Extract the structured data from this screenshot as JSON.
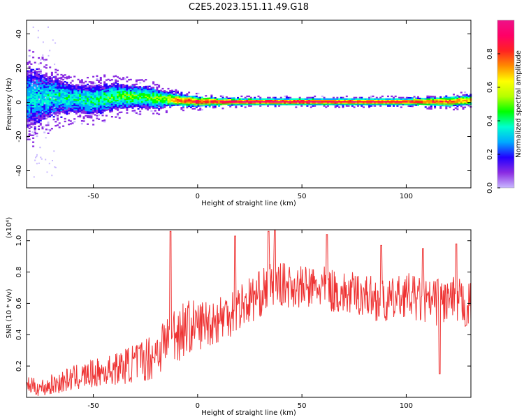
{
  "figure_title": "C2E5.2023.151.11.49.G18",
  "colorbar": {
    "label": "Normalized spectral amplitude",
    "range": [
      0,
      1
    ],
    "ticks": [
      0.0,
      0.2,
      0.4,
      0.6,
      0.8
    ],
    "tick_labels": [
      "0.0",
      "0.2",
      "0.4",
      "0.6",
      "0.8"
    ],
    "colormap": [
      "#c9b9ff",
      "#8a2be2",
      "#2200ff",
      "#00aaff",
      "#00ffd0",
      "#00ff00",
      "#b4ff00",
      "#ffff00",
      "#ff8c00",
      "#ff2222",
      "#ff0066",
      "#ee1188"
    ]
  },
  "chart_data": [
    {
      "type": "heatmap",
      "title": "",
      "xlabel": "Height of straight line (km)",
      "ylabel": "Frequency (Hz)",
      "xlim": [
        -82,
        131
      ],
      "ylim": [
        -50,
        48
      ],
      "x_ticks": [
        -50,
        0,
        50,
        100
      ],
      "x_tick_labels": [
        "-50",
        "0",
        "50",
        "100"
      ],
      "y_ticks": [
        -40,
        -20,
        0,
        20,
        40
      ],
      "y_tick_labels": [
        "-40",
        "-20",
        "0",
        "20",
        "40"
      ],
      "grid": false,
      "band_center_hz": [
        [
          -80,
          2
        ],
        [
          -70,
          3
        ],
        [
          -60,
          2
        ],
        [
          -50,
          1
        ],
        [
          -40,
          3
        ],
        [
          -30,
          3
        ],
        [
          -20,
          2
        ],
        [
          -10,
          1
        ],
        [
          0,
          0
        ],
        [
          10,
          0
        ],
        [
          20,
          0
        ],
        [
          40,
          0
        ],
        [
          60,
          0
        ],
        [
          80,
          0
        ],
        [
          100,
          0
        ],
        [
          120,
          0
        ],
        [
          130,
          1
        ]
      ],
      "band_halfwidth_hz": [
        [
          -80,
          18
        ],
        [
          -70,
          12
        ],
        [
          -60,
          9
        ],
        [
          -50,
          9
        ],
        [
          -40,
          8
        ],
        [
          -30,
          7
        ],
        [
          -20,
          6
        ],
        [
          -12,
          4
        ],
        [
          0,
          3
        ],
        [
          20,
          2
        ],
        [
          60,
          2
        ],
        [
          100,
          2
        ],
        [
          120,
          3
        ],
        [
          130,
          3
        ]
      ],
      "normalized_amplitude": [
        [
          -80,
          0.3
        ],
        [
          -70,
          0.35
        ],
        [
          -60,
          0.35
        ],
        [
          -50,
          0.4
        ],
        [
          -40,
          0.45
        ],
        [
          -30,
          0.45
        ],
        [
          -20,
          0.5
        ],
        [
          -15,
          0.55
        ],
        [
          -10,
          0.75
        ],
        [
          -5,
          0.8
        ],
        [
          0,
          0.85
        ],
        [
          10,
          0.85
        ],
        [
          20,
          0.95
        ],
        [
          40,
          0.95
        ],
        [
          60,
          0.9
        ],
        [
          80,
          0.9
        ],
        [
          100,
          0.85
        ],
        [
          120,
          0.8
        ],
        [
          130,
          0.7
        ]
      ]
    },
    {
      "type": "line",
      "title": "",
      "xlabel": "Height of straight line (km)",
      "ylabel": "SNR (10 * v/v)",
      "y_scale_label": "(x10⁴)",
      "xlim": [
        -82,
        131
      ],
      "ylim": [
        0,
        1.07
      ],
      "x_ticks": [
        -50,
        0,
        50,
        100
      ],
      "x_tick_labels": [
        "-50",
        "0",
        "50",
        "100"
      ],
      "y_ticks": [
        0.2,
        0.4,
        0.6,
        0.8,
        1.0
      ],
      "y_tick_labels": [
        "0.2",
        "0.4",
        "0.6",
        "0.8",
        "1.0"
      ],
      "grid": false,
      "series": [
        {
          "color": "#ee3333",
          "mean_envelope": [
            [
              -82,
              0.08
            ],
            [
              -75,
              0.06
            ],
            [
              -70,
              0.08
            ],
            [
              -60,
              0.12
            ],
            [
              -50,
              0.15
            ],
            [
              -40,
              0.18
            ],
            [
              -30,
              0.22
            ],
            [
              -22,
              0.26
            ],
            [
              -15,
              0.36
            ],
            [
              -10,
              0.42
            ],
            [
              -5,
              0.45
            ],
            [
              0,
              0.46
            ],
            [
              10,
              0.5
            ],
            [
              20,
              0.58
            ],
            [
              30,
              0.66
            ],
            [
              35,
              0.72
            ],
            [
              40,
              0.72
            ],
            [
              50,
              0.7
            ],
            [
              60,
              0.7
            ],
            [
              70,
              0.66
            ],
            [
              80,
              0.66
            ],
            [
              90,
              0.6
            ],
            [
              100,
              0.66
            ],
            [
              110,
              0.6
            ],
            [
              120,
              0.62
            ],
            [
              131,
              0.58
            ]
          ],
          "spread": [
            [
              -82,
              0.05
            ],
            [
              -60,
              0.08
            ],
            [
              -40,
              0.1
            ],
            [
              -20,
              0.16
            ],
            [
              -10,
              0.2
            ],
            [
              0,
              0.16
            ],
            [
              20,
              0.16
            ],
            [
              40,
              0.14
            ],
            [
              60,
              0.14
            ],
            [
              80,
              0.14
            ],
            [
              100,
              0.14
            ],
            [
              120,
              0.16
            ],
            [
              131,
              0.16
            ]
          ],
          "peaks": [
            [
              -13,
              1.06
            ],
            [
              18,
              1.03
            ],
            [
              34,
              1.06
            ],
            [
              37,
              1.07
            ],
            [
              62,
              1.04
            ],
            [
              88,
              0.97
            ],
            [
              108,
              0.95
            ],
            [
              116,
              0.15
            ],
            [
              124,
              0.98
            ]
          ]
        }
      ]
    }
  ]
}
